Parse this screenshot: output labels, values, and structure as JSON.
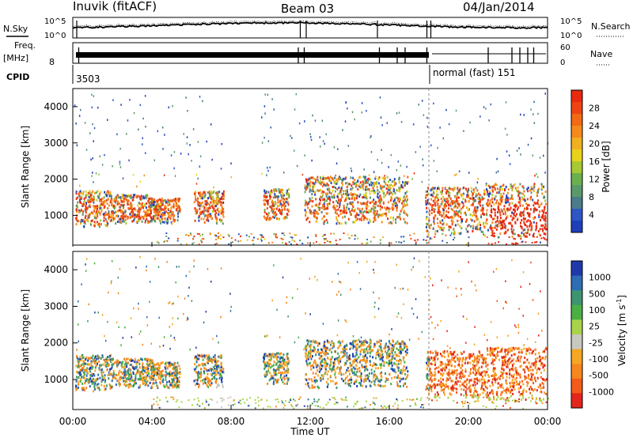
{
  "header": {
    "station": "Inuvik (fitACF)",
    "beam": "Beam 03",
    "date": "04/Jan/2014"
  },
  "aux_panels": {
    "nsky_label": "N.Sky",
    "nsearch_label": "N.Search",
    "nsky_ticks": [
      "10^5",
      "10^0"
    ],
    "nsky_right_ticks": [
      "10^5",
      "10^0"
    ],
    "freq_label": "Freq.",
    "freq_unit": "[MHz]",
    "freq_tick": "8",
    "nave_label": "Nave",
    "nave_ticks": [
      "60",
      "0"
    ],
    "cpid_label": "CPID",
    "cpid_left": "3503",
    "cpid_right": "normal (fast) 151"
  },
  "colors": {
    "power_scale": [
      "#1f3fb8",
      "#2e56c4",
      "#4a7c8c",
      "#5a9a6a",
      "#6bb04f",
      "#a8c834",
      "#e8d21a",
      "#f0b020",
      "#f58a1c",
      "#f26a14",
      "#ee4412",
      "#e82a10"
    ],
    "velocity_scale": [
      "#e3261b",
      "#f25b1a",
      "#f5871e",
      "#f5a623",
      "#c8c8c0",
      "#a8d44a",
      "#4bb043",
      "#3e9470",
      "#2e6db4",
      "#1f3aa8"
    ],
    "ground_scatter": "#c0c0c0"
  },
  "chart_data": [
    {
      "type": "heatmap",
      "name": "power",
      "ylabel": "Slant Range [km]",
      "yticks": [
        "1000",
        "2000",
        "3000",
        "4000"
      ],
      "ylim": [
        180,
        4500
      ],
      "colorbar_label": "Power [dB]",
      "colorbar_ticks": [
        "28",
        "24",
        "20",
        "16",
        "12",
        "8",
        "4"
      ],
      "colorbar_range": [
        0,
        30
      ]
    },
    {
      "type": "heatmap",
      "name": "velocity",
      "ylabel": "Slant Range [km]",
      "yticks": [
        "1000",
        "2000",
        "3000",
        "4000"
      ],
      "ylim": [
        180,
        4500
      ],
      "colorbar_label": "Velocity [m s",
      "colorbar_label_sup": "-1",
      "colorbar_label_end": "]",
      "colorbar_ticks": [
        "1000",
        "500",
        "100",
        "25",
        "-25",
        "-100",
        "-500",
        "-1000"
      ]
    }
  ],
  "xaxis": {
    "label": "Time UT",
    "ticks": [
      "00:00",
      "04:00",
      "08:00",
      "12:00",
      "16:00",
      "20:00",
      "00:00"
    ],
    "range_hours": [
      0,
      24
    ]
  }
}
